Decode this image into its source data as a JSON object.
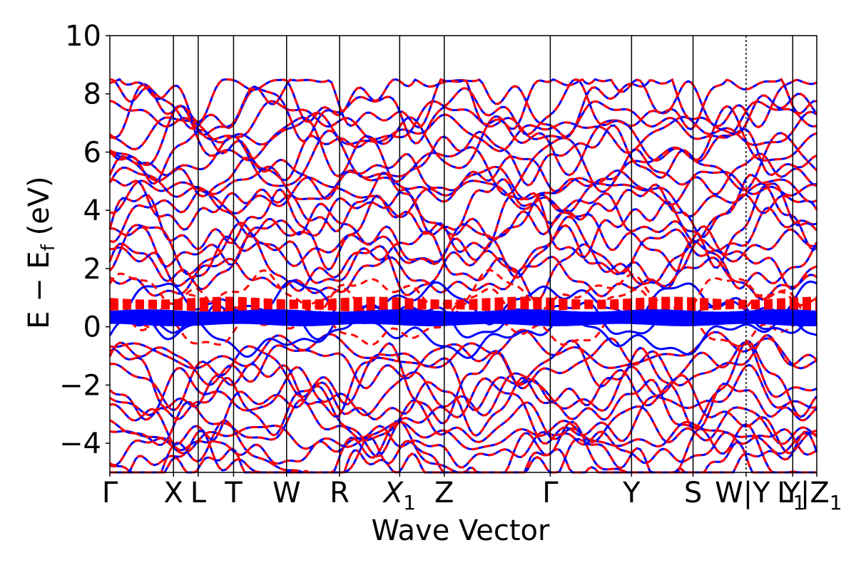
{
  "chart_data": {
    "type": "line",
    "title": "",
    "xlabel": "Wave Vector",
    "ylabel_main": "E − E",
    "ylabel_sub": "f",
    "ylabel_tail": " (eV)",
    "ylim": [
      -5,
      10
    ],
    "yticks": [
      -4,
      -2,
      0,
      2,
      4,
      6,
      8,
      10
    ],
    "ytick_labels": [
      "−4",
      "−2",
      "0",
      "2",
      "4",
      "6",
      "8",
      "10"
    ],
    "xlim": [
      0,
      100
    ],
    "kpoints": [
      {
        "x": 0,
        "label": "Γ",
        "sub": ""
      },
      {
        "x": 9,
        "label": "X",
        "sub": ""
      },
      {
        "x": 12.5,
        "label": "L",
        "sub": ""
      },
      {
        "x": 17.5,
        "label": "T",
        "sub": ""
      },
      {
        "x": 25,
        "label": "W",
        "sub": ""
      },
      {
        "x": 32.5,
        "label": "R",
        "sub": ""
      },
      {
        "x": 41,
        "label": "X",
        "sub": "1",
        "italic": true
      },
      {
        "x": 47.3,
        "label": "Z",
        "sub": ""
      },
      {
        "x": 62.3,
        "label": "Γ",
        "sub": ""
      },
      {
        "x": 73.8,
        "label": "Y",
        "sub": ""
      },
      {
        "x": 82.5,
        "label": "S",
        "sub": ""
      },
      {
        "x": 90,
        "label": "W|Y",
        "sub": "",
        "dotted": true,
        "dx": -5
      },
      {
        "x": 96.6,
        "label": "L",
        "sub": "1",
        "dx": -2
      },
      {
        "x": 100,
        "label": "Y|Z",
        "sub": "1",
        "dx": -6
      }
    ],
    "series": [
      {
        "style": "solid",
        "color": "#0000ff",
        "flat_band_levels": [
          0.12,
          0.2,
          0.26,
          0.3,
          0.34,
          0.38,
          0.42,
          0.46,
          0.5
        ]
      },
      {
        "style": "dashed",
        "color": "#ff0000",
        "flat_band_levels": [
          0.62,
          0.68,
          0.74,
          0.8,
          0.86,
          0.92
        ]
      }
    ],
    "band_region_top": 8.5,
    "band_region_bottom": -5,
    "band_count_estimate": 38
  }
}
